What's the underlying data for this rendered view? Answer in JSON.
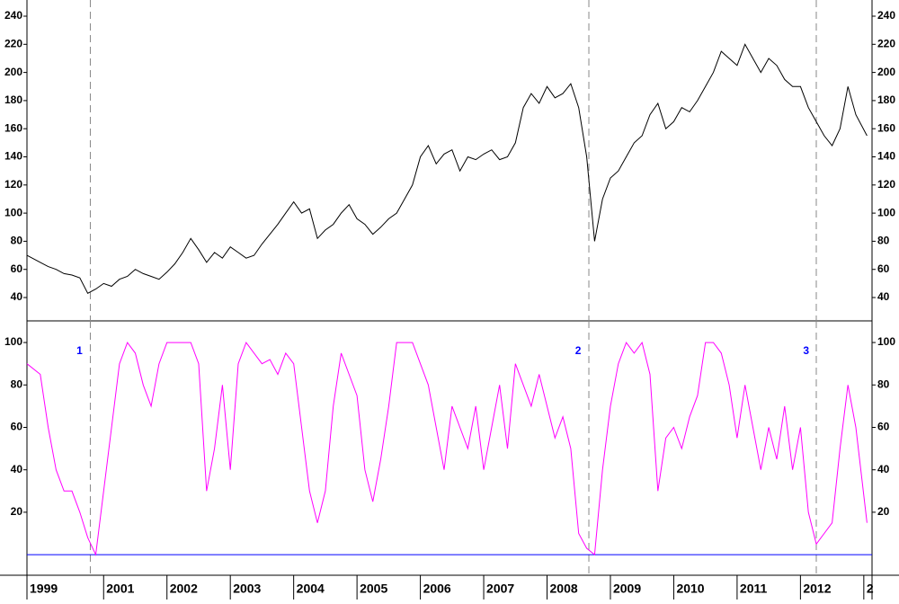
{
  "chart_data": [
    {
      "type": "line",
      "color": "#000000",
      "x": [
        1999.79,
        2000,
        2000.125,
        2000.25,
        2000.375,
        2000.5,
        2000.625,
        2000.75,
        2000.875,
        2001,
        2001.125,
        2001.25,
        2001.375,
        2001.5,
        2001.625,
        2001.75,
        2001.875,
        2002,
        2002.125,
        2002.25,
        2002.375,
        2002.5,
        2002.625,
        2002.75,
        2002.875,
        2003,
        2003.125,
        2003.25,
        2003.375,
        2003.5,
        2003.625,
        2003.75,
        2003.875,
        2004,
        2004.125,
        2004.25,
        2004.375,
        2004.5,
        2004.625,
        2004.75,
        2004.875,
        2005,
        2005.125,
        2005.25,
        2005.375,
        2005.5,
        2005.625,
        2005.75,
        2005.875,
        2006,
        2006.125,
        2006.25,
        2006.375,
        2006.5,
        2006.625,
        2006.75,
        2006.875,
        2007,
        2007.125,
        2007.25,
        2007.375,
        2007.5,
        2007.625,
        2007.75,
        2007.875,
        2008,
        2008.125,
        2008.25,
        2008.375,
        2008.5,
        2008.625,
        2008.75,
        2008.875,
        2009,
        2009.125,
        2009.25,
        2009.375,
        2009.5,
        2009.625,
        2009.75,
        2009.875,
        2010,
        2010.125,
        2010.25,
        2010.375,
        2010.5,
        2010.625,
        2010.75,
        2010.875,
        2011,
        2011.125,
        2011.25,
        2011.375,
        2011.5,
        2011.625,
        2011.75,
        2011.875,
        2012,
        2012.125,
        2012.25,
        2012.375,
        2012.5,
        2012.625,
        2012.75,
        2012.875,
        2013.05
      ],
      "values": [
        70,
        65,
        62,
        60,
        57,
        56,
        54,
        43,
        46,
        50,
        48,
        53,
        55,
        60,
        57,
        55,
        53,
        58,
        64,
        72,
        82,
        74,
        65,
        72,
        68,
        76,
        72,
        68,
        70,
        78,
        85,
        92,
        100,
        108,
        100,
        103,
        82,
        88,
        92,
        100,
        106,
        96,
        92,
        85,
        90,
        96,
        100,
        110,
        120,
        140,
        148,
        135,
        142,
        145,
        130,
        140,
        138,
        142,
        145,
        138,
        140,
        150,
        175,
        185,
        178,
        190,
        182,
        185,
        192,
        175,
        140,
        80,
        110,
        125,
        130,
        140,
        150,
        155,
        170,
        178,
        160,
        165,
        175,
        172,
        180,
        190,
        200,
        215,
        210,
        205,
        220,
        210,
        200,
        210,
        205,
        195,
        190,
        190,
        175,
        165,
        155,
        148,
        160,
        190,
        170,
        155
      ],
      "xlim": [
        1999.79,
        2013.13
      ],
      "ylim": [
        23.4,
        251.5
      ],
      "yticks": [
        40,
        60,
        80,
        100,
        120,
        140,
        160,
        180,
        200,
        220,
        240
      ],
      "vlines": [
        2000.79,
        2008.66,
        2012.25
      ]
    },
    {
      "type": "line",
      "color": "#ff00ff",
      "x": [
        1999.79,
        2000,
        2000.125,
        2000.25,
        2000.375,
        2000.5,
        2000.625,
        2000.75,
        2000.875,
        2001,
        2001.125,
        2001.25,
        2001.375,
        2001.5,
        2001.625,
        2001.75,
        2001.875,
        2002,
        2002.125,
        2002.25,
        2002.375,
        2002.5,
        2002.625,
        2002.75,
        2002.875,
        2003,
        2003.125,
        2003.25,
        2003.375,
        2003.5,
        2003.625,
        2003.75,
        2003.875,
        2004,
        2004.125,
        2004.25,
        2004.375,
        2004.5,
        2004.625,
        2004.75,
        2004.875,
        2005,
        2005.125,
        2005.25,
        2005.375,
        2005.5,
        2005.625,
        2005.75,
        2005.875,
        2006,
        2006.125,
        2006.25,
        2006.375,
        2006.5,
        2006.625,
        2006.75,
        2006.875,
        2007,
        2007.125,
        2007.25,
        2007.375,
        2007.5,
        2007.625,
        2007.75,
        2007.875,
        2008,
        2008.125,
        2008.25,
        2008.375,
        2008.5,
        2008.625,
        2008.75,
        2008.875,
        2009,
        2009.125,
        2009.25,
        2009.375,
        2009.5,
        2009.625,
        2009.75,
        2009.875,
        2010,
        2010.125,
        2010.25,
        2010.375,
        2010.5,
        2010.625,
        2010.75,
        2010.875,
        2011,
        2011.125,
        2011.25,
        2011.375,
        2011.5,
        2011.625,
        2011.75,
        2011.875,
        2012,
        2012.125,
        2012.25,
        2012.375,
        2012.5,
        2012.625,
        2012.75,
        2012.875,
        2013.05
      ],
      "values": [
        90,
        85,
        60,
        40,
        30,
        30,
        20,
        8,
        0,
        30,
        60,
        90,
        100,
        95,
        80,
        70,
        90,
        100,
        100,
        100,
        100,
        90,
        30,
        50,
        80,
        40,
        90,
        100,
        95,
        90,
        92,
        85,
        95,
        90,
        60,
        30,
        15,
        30,
        70,
        95,
        85,
        75,
        40,
        25,
        45,
        70,
        100,
        100,
        100,
        90,
        80,
        60,
        40,
        70,
        60,
        50,
        70,
        40,
        60,
        80,
        50,
        90,
        80,
        70,
        85,
        70,
        55,
        65,
        50,
        10,
        3,
        0,
        40,
        70,
        90,
        100,
        95,
        100,
        85,
        30,
        55,
        60,
        50,
        65,
        75,
        100,
        100,
        95,
        80,
        55,
        80,
        60,
        40,
        60,
        45,
        70,
        40,
        60,
        20,
        5,
        10,
        15,
        50,
        80,
        60,
        15
      ],
      "xlim": [
        1999.79,
        2013.13
      ],
      "ylim": [
        -9.7,
        110.2
      ],
      "yticks": [
        20,
        40,
        60,
        80,
        100
      ],
      "hline": 0,
      "hline_color": "#0000ff",
      "vlines": [
        2000.79,
        2008.66,
        2012.25
      ],
      "annotations": [
        {
          "text": "1",
          "x": 2000.62,
          "y": 95.8
        },
        {
          "text": "2",
          "x": 2008.49,
          "y": 95.8
        },
        {
          "text": "3",
          "x": 2012.09,
          "y": 95.8
        }
      ],
      "xticks": [
        {
          "value": 1999.79,
          "label": "1999"
        },
        2001,
        2002,
        2003,
        2004,
        2005,
        2006,
        2007,
        2008,
        2009,
        2010,
        2011,
        2012,
        {
          "value": 2013,
          "label": "2"
        }
      ]
    }
  ]
}
